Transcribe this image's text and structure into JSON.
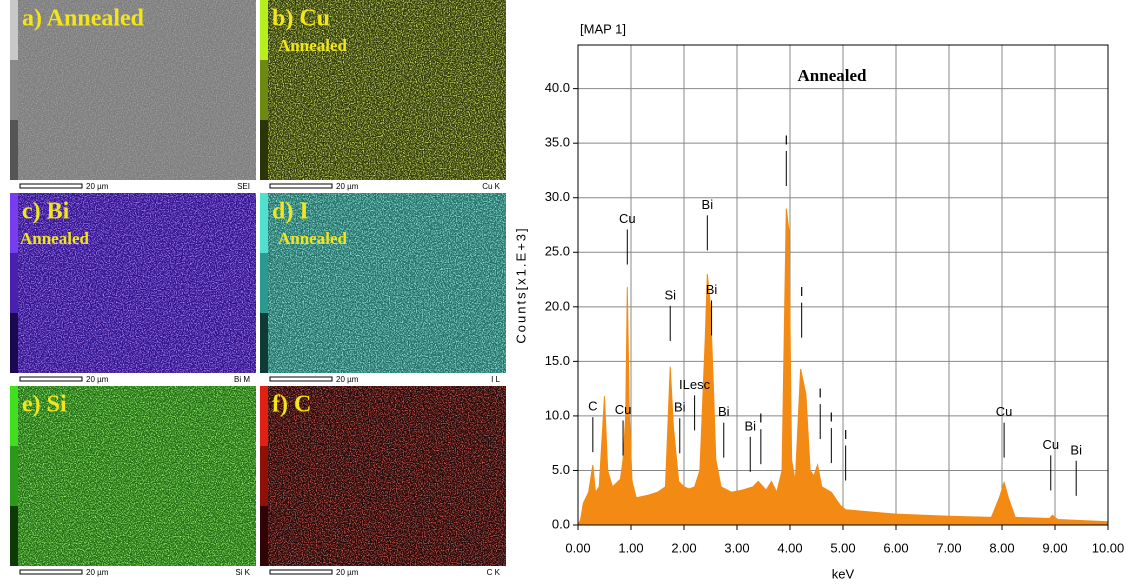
{
  "maps": [
    {
      "label": "a) Annealed",
      "scale_bar": "20 µm",
      "signal": "SEI"
    },
    {
      "label": "b) Cu",
      "subtitle": "Annealed",
      "scale_bar": "20 µm",
      "signal": "Cu K"
    },
    {
      "label": "c) Bi",
      "subtitle": "Annealed",
      "scale_bar": "20 µm",
      "signal": "Bi M"
    },
    {
      "label": "d) I",
      "subtitle": "Annealed",
      "scale_bar": "20 µm",
      "signal": "I L"
    },
    {
      "label": "e) Si",
      "scale_bar": "20 µm",
      "signal": "Si K"
    },
    {
      "label": "f) C",
      "scale_bar": "20 µm",
      "signal": "C K"
    }
  ],
  "chart_data": {
    "type": "area",
    "title": "[MAP 1]",
    "annotation": "Annealed",
    "xlabel": "keV",
    "ylabel": "Counts[x1.E+3]",
    "color": "#f28a14",
    "grid": true,
    "xlim": [
      0,
      10
    ],
    "ylim": [
      0,
      44
    ],
    "xticks": [
      {
        "value": 0,
        "label": "0.00"
      },
      {
        "value": 1,
        "label": "1.00"
      },
      {
        "value": 2,
        "label": "2.00"
      },
      {
        "value": 3,
        "label": "3.00"
      },
      {
        "value": 4,
        "label": "4.00"
      },
      {
        "value": 5,
        "label": "5.00"
      },
      {
        "value": 6,
        "label": "6.00"
      },
      {
        "value": 7,
        "label": "7.00"
      },
      {
        "value": 8,
        "label": "8.00"
      },
      {
        "value": 9,
        "label": "9.00"
      },
      {
        "value": 10,
        "label": "10.00"
      }
    ],
    "yticks": [
      {
        "value": 0,
        "label": "0.0"
      },
      {
        "value": 5,
        "label": "5.0"
      },
      {
        "value": 10,
        "label": "10.0"
      },
      {
        "value": 15,
        "label": "15.0"
      },
      {
        "value": 20,
        "label": "20.0"
      },
      {
        "value": 25,
        "label": "25.0"
      },
      {
        "value": 30,
        "label": "30.0"
      },
      {
        "value": 35,
        "label": "35.0"
      },
      {
        "value": 40,
        "label": "40.0"
      }
    ],
    "x": [
      0,
      0.05,
      0.1,
      0.2,
      0.28,
      0.33,
      0.4,
      0.5,
      0.56,
      0.65,
      0.8,
      0.85,
      0.9,
      0.93,
      0.97,
      1.02,
      1.1,
      1.3,
      1.5,
      1.65,
      1.74,
      1.8,
      1.9,
      2.0,
      2.1,
      2.2,
      2.3,
      2.4,
      2.44,
      2.5,
      2.56,
      2.6,
      2.7,
      2.9,
      3.1,
      3.3,
      3.4,
      3.55,
      3.65,
      3.75,
      3.85,
      3.9,
      3.93,
      3.98,
      4.03,
      4.1,
      4.2,
      4.3,
      4.38,
      4.45,
      4.52,
      4.6,
      4.78,
      4.85,
      4.95,
      5.05,
      5.5,
      6.0,
      7.0,
      7.8,
      7.95,
      8.04,
      8.12,
      8.25,
      8.9,
      8.95,
      9.05,
      10.0
    ],
    "values": [
      0,
      0.5,
      2.0,
      3.0,
      5.5,
      3.0,
      3.5,
      11.8,
      5,
      3.5,
      4.2,
      6,
      10,
      21.8,
      10,
      4,
      2.5,
      2.7,
      3.0,
      3.5,
      14.5,
      9,
      4,
      3.5,
      3.3,
      3.5,
      5,
      17,
      23,
      20,
      12,
      6,
      3.5,
      3.0,
      3.2,
      3.5,
      4,
      3.2,
      4,
      3,
      5,
      20,
      29,
      27,
      6,
      4,
      14.3,
      12,
      5,
      4.5,
      5.5,
      3.5,
      3.0,
      2.5,
      1.8,
      1.4,
      1.2,
      1.0,
      0.8,
      0.7,
      2.5,
      3.9,
      2.5,
      0.7,
      0.6,
      0.9,
      0.5,
      0.3
    ],
    "peak_labels": [
      {
        "label": "C",
        "x": 0.28,
        "y": 10.8
      },
      {
        "label": "Cu",
        "x": 0.85,
        "y": 10.5
      },
      {
        "label": "Cu",
        "x": 0.93,
        "y": 28
      },
      {
        "label": "Si",
        "x": 1.74,
        "y": 21
      },
      {
        "label": "Bi",
        "x": 1.92,
        "y": 10.7
      },
      {
        "label": "ILesc",
        "x": 2.2,
        "y": 12.8
      },
      {
        "label": "Bi",
        "x": 2.44,
        "y": 29.3
      },
      {
        "label": "Bi",
        "x": 2.52,
        "y": 21.5
      },
      {
        "label": "Bi",
        "x": 2.75,
        "y": 10.3
      },
      {
        "label": "Bi",
        "x": 3.25,
        "y": 9
      },
      {
        "label": "I",
        "x": 3.45,
        "y": 9.7
      },
      {
        "label": "I",
        "x": 3.93,
        "y": 35.2
      },
      {
        "label": "I",
        "x": 4.22,
        "y": 21.3
      },
      {
        "label": "I",
        "x": 4.57,
        "y": 12
      },
      {
        "label": "I",
        "x": 4.78,
        "y": 9.8
      },
      {
        "label": "I",
        "x": 5.05,
        "y": 8.2
      },
      {
        "label": "Cu",
        "x": 8.04,
        "y": 10.3
      },
      {
        "label": "Cu",
        "x": 8.92,
        "y": 7.3
      },
      {
        "label": "Bi",
        "x": 9.4,
        "y": 6.8
      }
    ]
  }
}
